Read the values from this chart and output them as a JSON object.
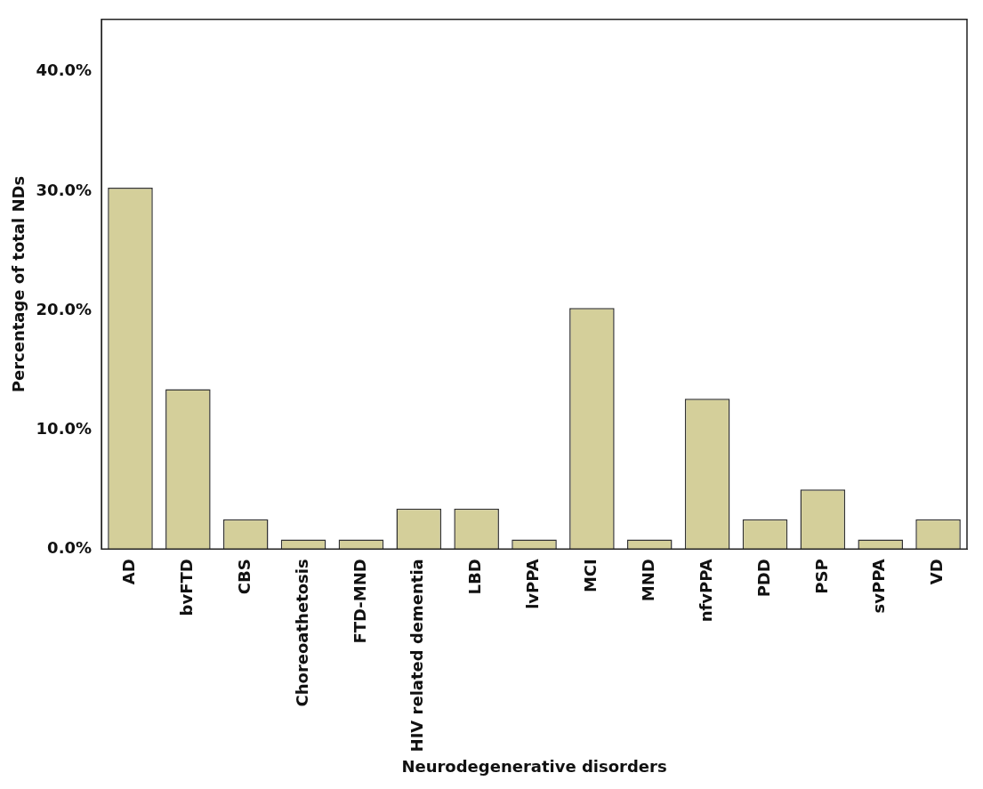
{
  "chart_data": {
    "type": "bar",
    "xlabel": "Neurodegenerative disorders",
    "ylabel": "Percentage of total NDs",
    "categories": [
      "AD",
      "bvFTD",
      "CBS",
      "Choreoathetosis",
      "FTD-MND",
      "HIV related dementia",
      "LBD",
      "lvPPA",
      "MCI",
      "MND",
      "nfvPPA",
      "PDD",
      "PSP",
      "svPPA",
      "VD"
    ],
    "values": [
      30.3,
      13.4,
      2.5,
      0.8,
      0.8,
      3.4,
      3.4,
      0.8,
      20.2,
      0.8,
      12.6,
      2.5,
      5.0,
      0.8,
      2.5
    ],
    "color": "#d4cf9a",
    "ylim": [
      0,
      44.4
    ],
    "yticks": [
      {
        "value": 0,
        "label": "0.0%"
      },
      {
        "value": 10,
        "label": "10.0%"
      },
      {
        "value": 20,
        "label": "20.0%"
      },
      {
        "value": 30,
        "label": "30.0%"
      },
      {
        "value": 40,
        "label": "40.0%"
      }
    ],
    "grid": false,
    "legend": false
  }
}
